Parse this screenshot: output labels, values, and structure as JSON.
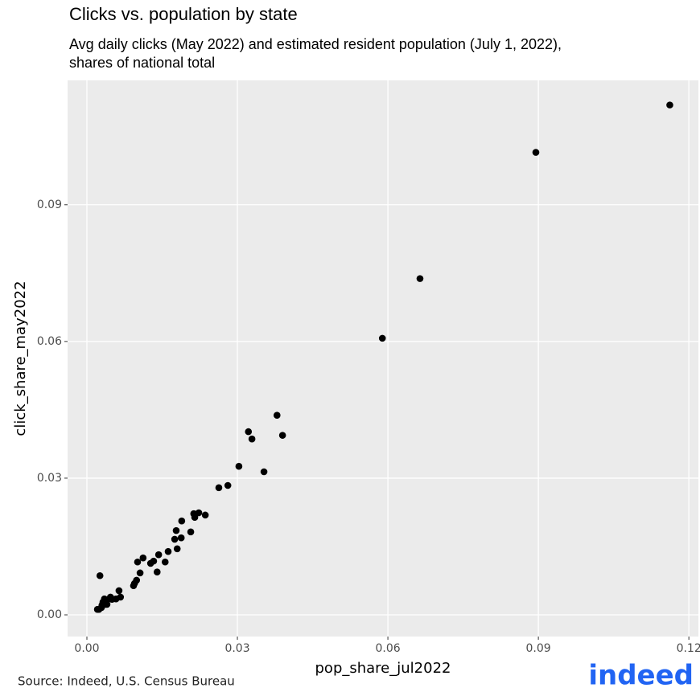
{
  "chart_data": {
    "type": "scatter",
    "title": "Clicks vs. population by state",
    "subtitle": [
      "Avg daily clicks (May 2022) and estimated resident population (July 1, 2022),",
      "shares of national total"
    ],
    "x_label": "pop_share_jul2022",
    "y_label": "click_share_may2022",
    "caption": "Source: Indeed, U.S. Census Bureau",
    "logo": "indeed",
    "color": "#000000",
    "grid": true,
    "xlim": [
      -0.00385,
      0.1219
    ],
    "ylim": [
      -0.00476,
      0.1173
    ],
    "xticks": [
      {
        "value": 0,
        "label": "0.00"
      },
      0.03,
      0.06,
      0.09,
      0.12
    ],
    "yticks": [
      {
        "value": 0,
        "label": "0.00"
      },
      0.03,
      0.06,
      0.09
    ],
    "x": [
      0.1162,
      0.0895,
      0.0664,
      0.0589,
      0.0379,
      0.039,
      0.0322,
      0.0329,
      0.0353,
      0.0303,
      0.0281,
      0.0263,
      0.0236,
      0.0213,
      0.0223,
      0.0215,
      0.0189,
      0.0207,
      0.0178,
      0.0188,
      0.0175,
      0.018,
      0.0162,
      0.0156,
      0.0143,
      0.014,
      0.0127,
      0.0133,
      0.0112,
      0.0101,
      0.0106,
      0.0099,
      0.0095,
      0.0093,
      0.0064,
      0.0067,
      0.0058,
      0.0047,
      0.004,
      0.0037,
      0.0035,
      0.003,
      0.0026,
      0.0024,
      0.0021,
      0.0029,
      0.0032,
      0.004,
      0.005
    ],
    "values": [
      0.1119,
      0.1015,
      0.0738,
      0.0607,
      0.0438,
      0.0394,
      0.0402,
      0.0386,
      0.0314,
      0.0326,
      0.0284,
      0.0279,
      0.0219,
      0.0222,
      0.0224,
      0.0214,
      0.0206,
      0.0182,
      0.0185,
      0.0169,
      0.0166,
      0.0145,
      0.0139,
      0.0116,
      0.0132,
      0.0094,
      0.0113,
      0.0118,
      0.0125,
      0.0116,
      0.0092,
      0.0076,
      0.0069,
      0.0064,
      0.0053,
      0.0039,
      0.0035,
      0.0039,
      0.0032,
      0.0023,
      0.0035,
      0.0021,
      0.0086,
      0.0012,
      0.0012,
      0.0016,
      0.0028,
      0.0023,
      0.0034
    ]
  }
}
